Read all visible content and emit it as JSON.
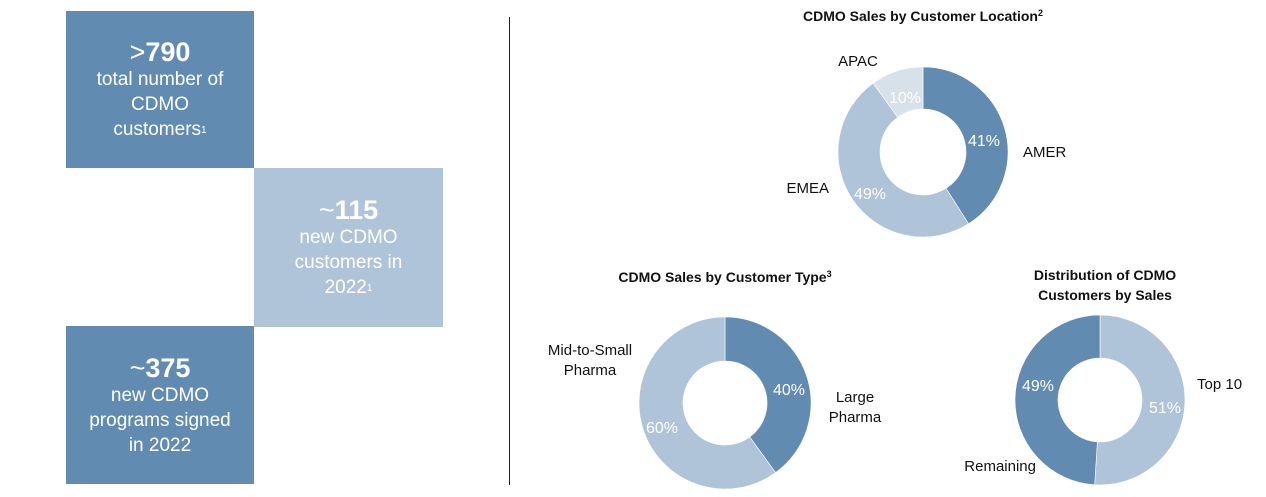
{
  "stats": [
    {
      "prefix": ">",
      "number": "790",
      "lines": [
        "total number of",
        "CDMO",
        "customers"
      ],
      "footnote": "1"
    },
    {
      "prefix": "~",
      "number": "115",
      "lines": [
        "new CDMO",
        "customers in",
        "2022"
      ],
      "footnote": "1"
    },
    {
      "prefix": "~",
      "number": "375",
      "lines": [
        "new CDMO",
        "programs signed",
        "in 2022"
      ],
      "footnote": ""
    }
  ],
  "colors": {
    "dark": "#618bb0",
    "mid": "#afc4d8",
    "light": "#d7e1ea"
  },
  "chart_data": [
    {
      "type": "pie",
      "title": "CDMO Sales by Customer Location",
      "title_footnote": "2",
      "donut": true,
      "slices": [
        {
          "label": "AMER",
          "value": 41,
          "display": "41%",
          "color": "#618bb0"
        },
        {
          "label": "EMEA",
          "value": 49,
          "display": "49%",
          "color": "#afc4d8"
        },
        {
          "label": "APAC",
          "value": 10,
          "display": "10%",
          "color": "#d7e1ea"
        }
      ]
    },
    {
      "type": "pie",
      "title": "CDMO Sales by Customer Type",
      "title_footnote": "3",
      "donut": true,
      "slices": [
        {
          "label": "Large Pharma",
          "value": 40,
          "display": "40%",
          "color": "#618bb0"
        },
        {
          "label": "Mid-to-Small Pharma",
          "value": 60,
          "display": "60%",
          "color": "#afc4d8"
        }
      ]
    },
    {
      "type": "pie",
      "title": "Distribution of CDMO Customers by Sales",
      "title_footnote": "",
      "donut": true,
      "slices": [
        {
          "label": "Top 10",
          "value": 51,
          "display": "51%",
          "color": "#afc4d8"
        },
        {
          "label": "Remaining",
          "value": 49,
          "display": "49%",
          "color": "#618bb0"
        }
      ]
    }
  ]
}
